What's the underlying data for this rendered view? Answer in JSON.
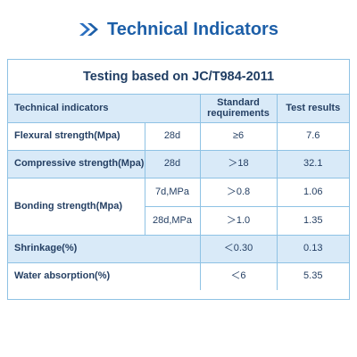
{
  "header": {
    "title": "Technical Indicators",
    "icon": "double-chevron-right-icon",
    "accent": "#1d5fa8"
  },
  "table": {
    "caption": "Testing based on JC/T984-2011",
    "columns": {
      "indicator": "Technical indicators",
      "standard": "Standard requirements",
      "result": "Test results"
    },
    "rows": {
      "flexural": {
        "name": "Flexural strength(Mpa)",
        "condition": "28d",
        "standard": "≥6",
        "result": "7.6"
      },
      "compressive": {
        "name": "Compressive strength(Mpa)",
        "condition": "28d",
        "standard": "＞18",
        "result": "32.1"
      },
      "bonding": {
        "name": "Bonding strength(Mpa)",
        "sub": [
          {
            "condition": "7d,MPa",
            "standard": "＞0.8",
            "result": "1.06"
          },
          {
            "condition": "28d,MPa",
            "standard": "＞1.0",
            "result": "1.35"
          }
        ]
      },
      "shrinkage": {
        "name": "Shrinkage(%)",
        "standard": "＜0.30",
        "result": "0.13"
      },
      "water": {
        "name": "Water absorption(%)",
        "standard": "＜6",
        "result": "5.35"
      }
    },
    "colors": {
      "border": "#8ec2e4",
      "shade": "#d9eaf8",
      "text": "#243f63"
    }
  }
}
